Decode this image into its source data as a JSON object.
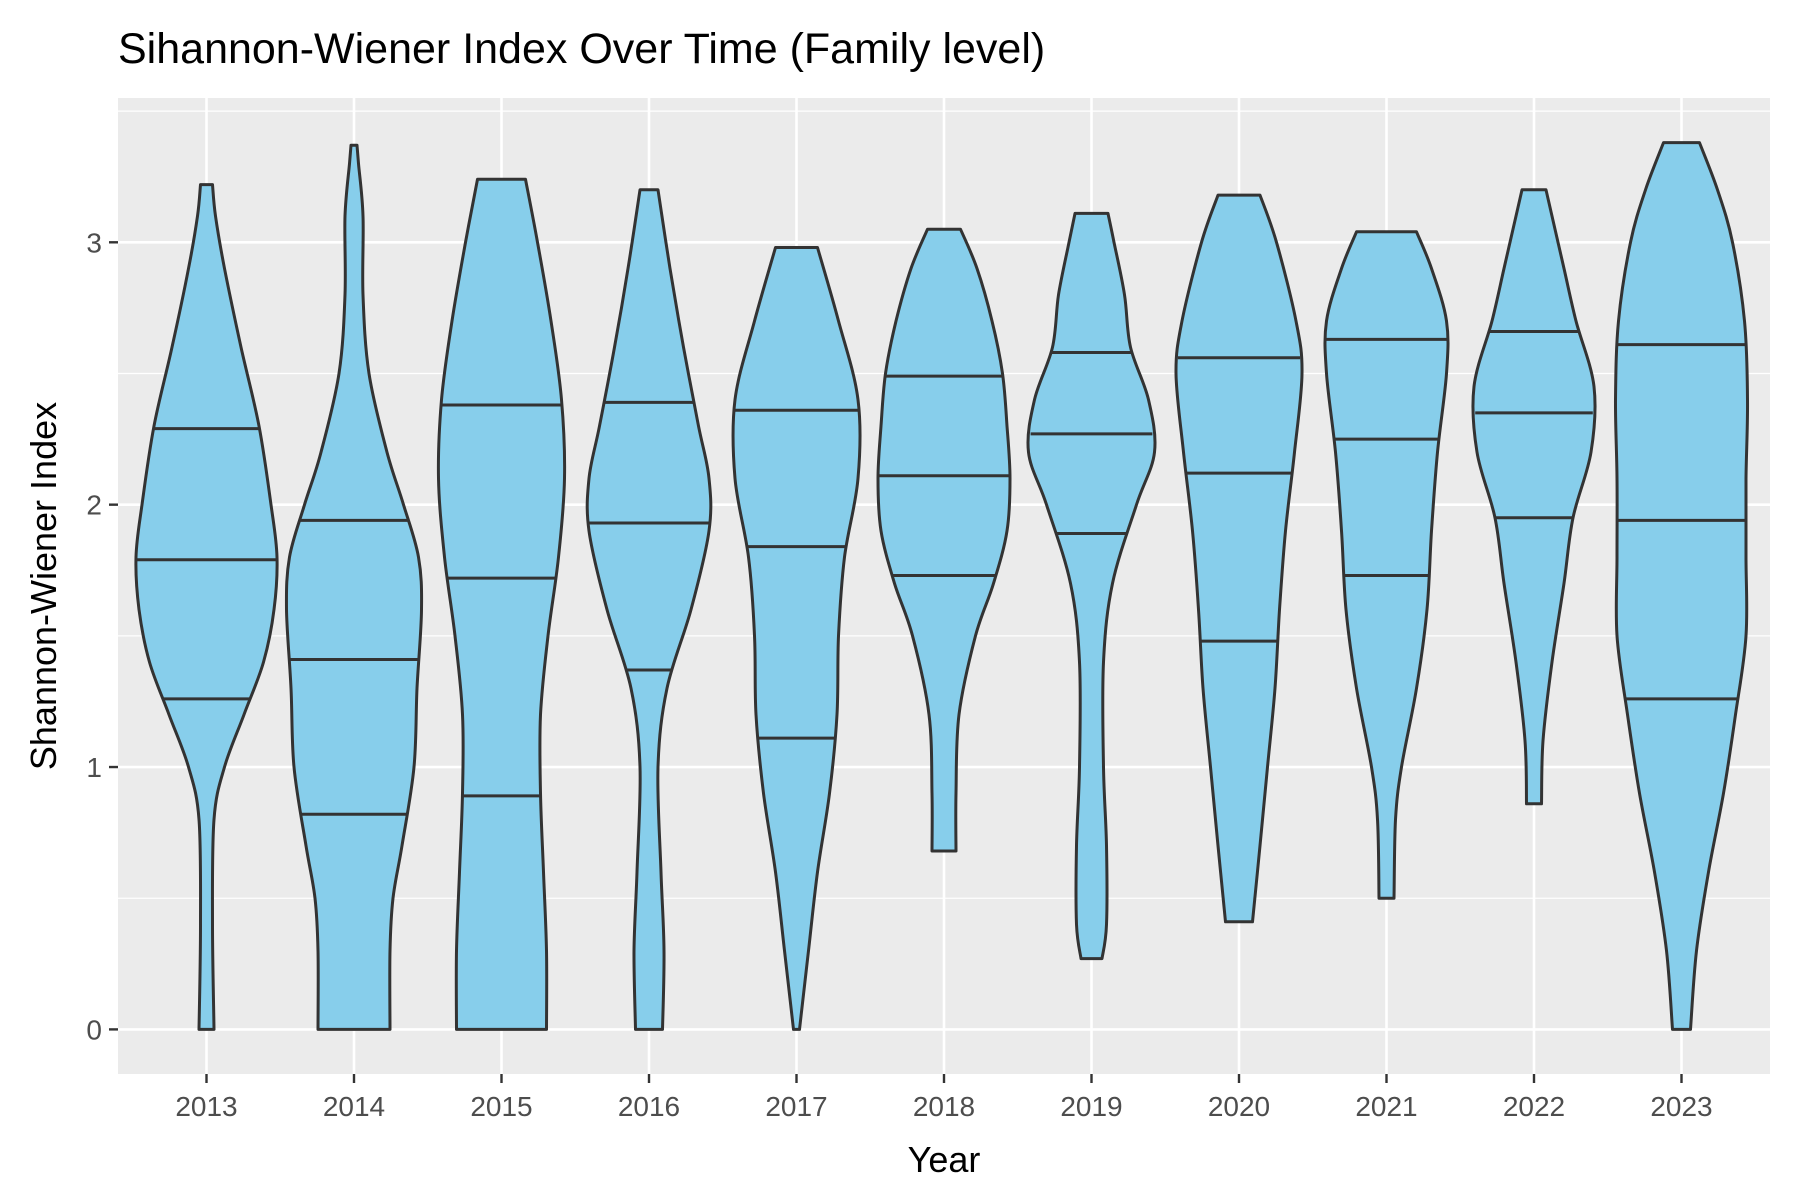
{
  "chart_data": {
    "type": "violin",
    "title": "Sihannon-Wiener Index Over Time (Family level)",
    "xlabel": "Year",
    "ylabel": "Shannon-Wiener Index",
    "ylim": [
      -0.17,
      3.55
    ],
    "yticks": [
      0,
      1,
      2,
      3
    ],
    "grid": true,
    "legend": "none",
    "colors": {
      "fill": "#87CEEB",
      "outline": "#333333",
      "panel": "#EBEBEB",
      "grid": "#FFFFFF"
    },
    "categories": [
      "2013",
      "2014",
      "2015",
      "2016",
      "2017",
      "2018",
      "2019",
      "2020",
      "2021",
      "2022",
      "2023"
    ],
    "violins": [
      {
        "year": "2013",
        "min": 0.0,
        "max": 3.22,
        "quantiles": [
          1.26,
          1.79,
          2.29
        ],
        "profile": [
          [
            0.0,
            0.05
          ],
          [
            0.4,
            0.04
          ],
          [
            0.8,
            0.05
          ],
          [
            1.0,
            0.12
          ],
          [
            1.2,
            0.25
          ],
          [
            1.4,
            0.38
          ],
          [
            1.6,
            0.45
          ],
          [
            1.8,
            0.47
          ],
          [
            2.0,
            0.43
          ],
          [
            2.3,
            0.35
          ],
          [
            2.6,
            0.23
          ],
          [
            2.9,
            0.12
          ],
          [
            3.1,
            0.06
          ],
          [
            3.22,
            0.04
          ]
        ]
      },
      {
        "year": "2014",
        "min": 0.0,
        "max": 3.37,
        "quantiles": [
          0.82,
          1.41,
          1.94
        ],
        "profile": [
          [
            0.0,
            0.24
          ],
          [
            0.3,
            0.24
          ],
          [
            0.5,
            0.26
          ],
          [
            0.7,
            0.32
          ],
          [
            1.0,
            0.4
          ],
          [
            1.3,
            0.42
          ],
          [
            1.6,
            0.45
          ],
          [
            1.8,
            0.43
          ],
          [
            2.0,
            0.33
          ],
          [
            2.2,
            0.22
          ],
          [
            2.5,
            0.1
          ],
          [
            2.8,
            0.06
          ],
          [
            3.1,
            0.06
          ],
          [
            3.3,
            0.03
          ],
          [
            3.37,
            0.02
          ]
        ]
      },
      {
        "year": "2015",
        "min": 0.0,
        "max": 3.24,
        "quantiles": [
          0.89,
          1.72,
          2.38
        ],
        "profile": [
          [
            0.0,
            0.3
          ],
          [
            0.3,
            0.3
          ],
          [
            0.6,
            0.28
          ],
          [
            0.9,
            0.26
          ],
          [
            1.2,
            0.26
          ],
          [
            1.5,
            0.31
          ],
          [
            1.8,
            0.38
          ],
          [
            2.1,
            0.42
          ],
          [
            2.4,
            0.4
          ],
          [
            2.7,
            0.33
          ],
          [
            3.0,
            0.24
          ],
          [
            3.24,
            0.16
          ]
        ]
      },
      {
        "year": "2016",
        "min": 0.0,
        "max": 3.2,
        "quantiles": [
          1.37,
          1.93,
          2.39
        ],
        "profile": [
          [
            0.0,
            0.09
          ],
          [
            0.3,
            0.1
          ],
          [
            0.6,
            0.08
          ],
          [
            1.0,
            0.06
          ],
          [
            1.3,
            0.12
          ],
          [
            1.6,
            0.28
          ],
          [
            1.9,
            0.4
          ],
          [
            2.1,
            0.4
          ],
          [
            2.3,
            0.33
          ],
          [
            2.6,
            0.23
          ],
          [
            2.9,
            0.14
          ],
          [
            3.2,
            0.06
          ]
        ]
      },
      {
        "year": "2017",
        "min": 0.0,
        "max": 2.98,
        "quantiles": [
          1.11,
          1.84,
          2.36
        ],
        "profile": [
          [
            0.0,
            0.02
          ],
          [
            0.3,
            0.08
          ],
          [
            0.6,
            0.14
          ],
          [
            0.9,
            0.22
          ],
          [
            1.2,
            0.27
          ],
          [
            1.5,
            0.28
          ],
          [
            1.8,
            0.32
          ],
          [
            2.1,
            0.41
          ],
          [
            2.4,
            0.41
          ],
          [
            2.7,
            0.28
          ],
          [
            2.98,
            0.14
          ]
        ]
      },
      {
        "year": "2018",
        "min": 0.68,
        "max": 3.05,
        "quantiles": [
          1.73,
          2.11,
          2.49
        ],
        "profile": [
          [
            0.68,
            0.08
          ],
          [
            0.9,
            0.08
          ],
          [
            1.2,
            0.1
          ],
          [
            1.5,
            0.21
          ],
          [
            1.7,
            0.33
          ],
          [
            1.9,
            0.42
          ],
          [
            2.1,
            0.44
          ],
          [
            2.3,
            0.42
          ],
          [
            2.5,
            0.39
          ],
          [
            2.7,
            0.32
          ],
          [
            2.9,
            0.22
          ],
          [
            3.05,
            0.11
          ]
        ]
      },
      {
        "year": "2019",
        "min": 0.27,
        "max": 3.11,
        "quantiles": [
          1.89,
          2.27,
          2.58
        ],
        "profile": [
          [
            0.27,
            0.07
          ],
          [
            0.4,
            0.1
          ],
          [
            0.7,
            0.1
          ],
          [
            1.0,
            0.08
          ],
          [
            1.4,
            0.08
          ],
          [
            1.7,
            0.14
          ],
          [
            2.0,
            0.3
          ],
          [
            2.2,
            0.42
          ],
          [
            2.4,
            0.38
          ],
          [
            2.6,
            0.26
          ],
          [
            2.8,
            0.22
          ],
          [
            3.0,
            0.15
          ],
          [
            3.11,
            0.11
          ]
        ]
      },
      {
        "year": "2020",
        "min": 0.41,
        "max": 3.18,
        "quantiles": [
          1.48,
          2.12,
          2.56
        ],
        "profile": [
          [
            0.41,
            0.09
          ],
          [
            0.7,
            0.14
          ],
          [
            1.0,
            0.19
          ],
          [
            1.3,
            0.24
          ],
          [
            1.6,
            0.27
          ],
          [
            1.9,
            0.31
          ],
          [
            2.2,
            0.37
          ],
          [
            2.5,
            0.42
          ],
          [
            2.7,
            0.38
          ],
          [
            3.0,
            0.25
          ],
          [
            3.18,
            0.14
          ]
        ]
      },
      {
        "year": "2021",
        "min": 0.5,
        "max": 3.04,
        "quantiles": [
          1.73,
          2.25,
          2.63
        ],
        "profile": [
          [
            0.5,
            0.05
          ],
          [
            0.8,
            0.06
          ],
          [
            1.0,
            0.1
          ],
          [
            1.3,
            0.2
          ],
          [
            1.6,
            0.27
          ],
          [
            1.9,
            0.3
          ],
          [
            2.2,
            0.34
          ],
          [
            2.5,
            0.4
          ],
          [
            2.7,
            0.4
          ],
          [
            2.9,
            0.3
          ],
          [
            3.04,
            0.2
          ]
        ]
      },
      {
        "year": "2022",
        "min": 0.86,
        "max": 3.2,
        "quantiles": [
          1.95,
          2.35,
          2.66
        ],
        "profile": [
          [
            0.86,
            0.05
          ],
          [
            1.1,
            0.06
          ],
          [
            1.4,
            0.12
          ],
          [
            1.7,
            0.2
          ],
          [
            1.95,
            0.26
          ],
          [
            2.2,
            0.38
          ],
          [
            2.45,
            0.4
          ],
          [
            2.7,
            0.28
          ],
          [
            2.9,
            0.2
          ],
          [
            3.1,
            0.12
          ],
          [
            3.2,
            0.08
          ]
        ]
      },
      {
        "year": "2023",
        "min": 0.0,
        "max": 3.38,
        "quantiles": [
          1.26,
          1.94,
          2.61
        ],
        "profile": [
          [
            0.0,
            0.06
          ],
          [
            0.3,
            0.1
          ],
          [
            0.6,
            0.18
          ],
          [
            0.9,
            0.28
          ],
          [
            1.2,
            0.36
          ],
          [
            1.5,
            0.43
          ],
          [
            1.8,
            0.43
          ],
          [
            2.1,
            0.43
          ],
          [
            2.4,
            0.44
          ],
          [
            2.7,
            0.42
          ],
          [
            3.0,
            0.34
          ],
          [
            3.2,
            0.24
          ],
          [
            3.38,
            0.12
          ]
        ]
      }
    ]
  }
}
